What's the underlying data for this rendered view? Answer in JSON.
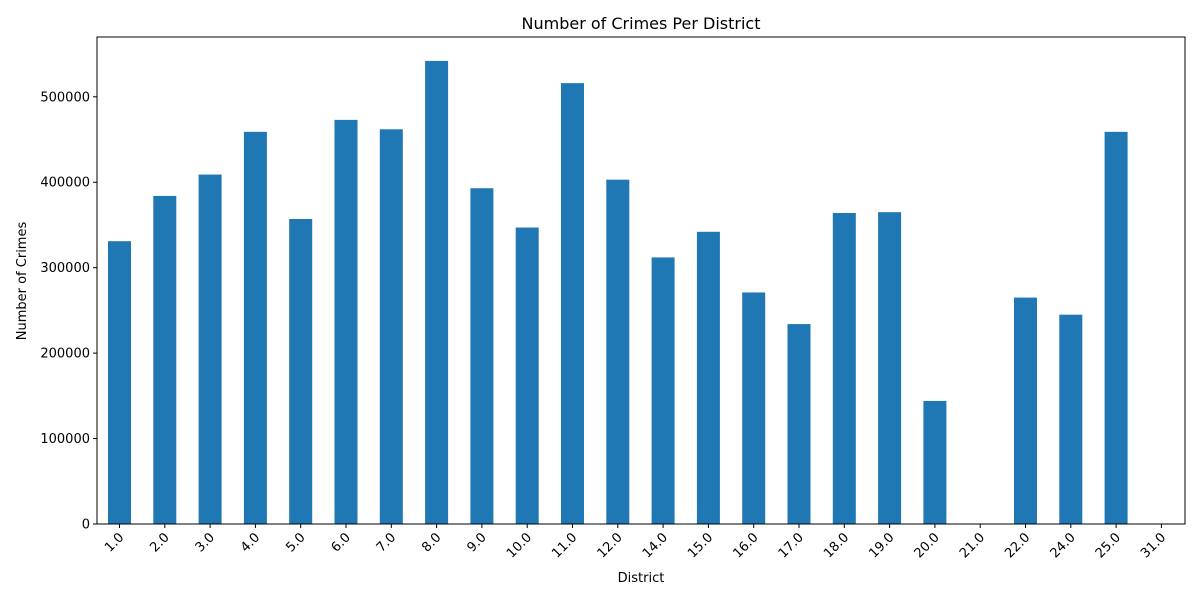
{
  "chart_data": {
    "type": "bar",
    "title": "Number of Crimes Per District",
    "xlabel": "District",
    "ylabel": "Number of Crimes",
    "categories": [
      "1.0",
      "2.0",
      "3.0",
      "4.0",
      "5.0",
      "6.0",
      "7.0",
      "8.0",
      "9.0",
      "10.0",
      "11.0",
      "12.0",
      "14.0",
      "15.0",
      "16.0",
      "17.0",
      "18.0",
      "19.0",
      "20.0",
      "21.0",
      "22.0",
      "24.0",
      "25.0",
      "31.0"
    ],
    "values": [
      331000,
      384000,
      409000,
      459000,
      357000,
      473000,
      462000,
      542000,
      393000,
      347000,
      516000,
      403000,
      312000,
      342000,
      271000,
      234000,
      364000,
      365000,
      144000,
      4,
      265000,
      245000,
      459000,
      2
    ],
    "ylim": [
      0,
      570000
    ],
    "yticks": [
      0,
      100000,
      200000,
      300000,
      400000,
      500000
    ],
    "ytick_labels": [
      "0",
      "100000",
      "200000",
      "300000",
      "400000",
      "500000"
    ],
    "bar_color": "#1f77b4",
    "grid": false,
    "legend": "none"
  }
}
